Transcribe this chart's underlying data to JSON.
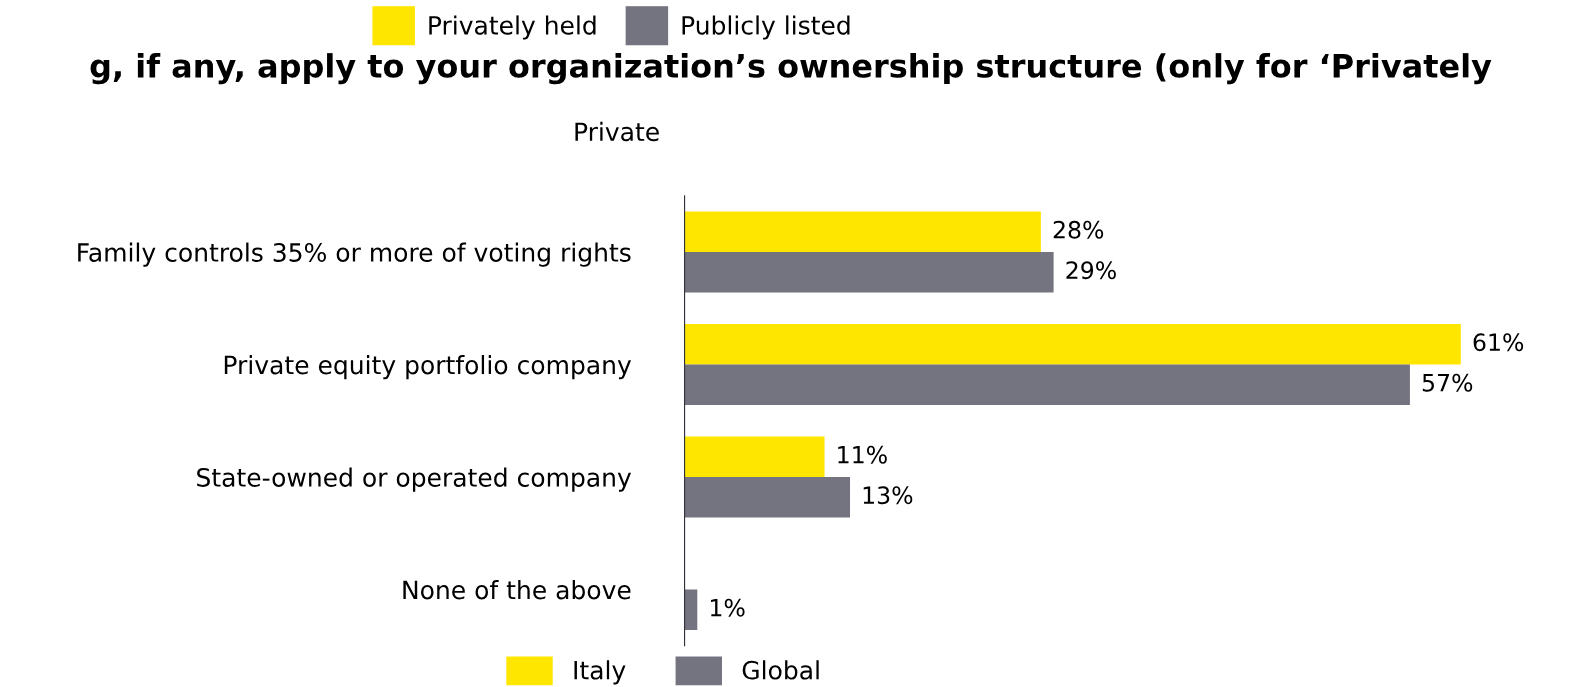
{
  "chart_data": {
    "type": "bar",
    "orientation": "horizontal",
    "title": "g, if any, apply to your organization’s ownership structure (only for ‘Privately",
    "subtitle": "Private",
    "categories": [
      "Family controls 35% or more of voting rights",
      "Private equity portfolio company",
      "State-owned or operated company",
      "None of the above"
    ],
    "series": [
      {
        "name": "Italy",
        "color": "#ffe600",
        "values": [
          28,
          61,
          11,
          null
        ],
        "value_labels": [
          "28%",
          "61%",
          "11%",
          null
        ]
      },
      {
        "name": "Global",
        "color": "#747480",
        "values": [
          29,
          57,
          13,
          1
        ],
        "value_labels": [
          "29%",
          "57%",
          "13%",
          "1%"
        ]
      }
    ],
    "annotations": [
      "Privately held",
      "Publicly listed"
    ],
    "legend": "bottom",
    "grid": false
  }
}
